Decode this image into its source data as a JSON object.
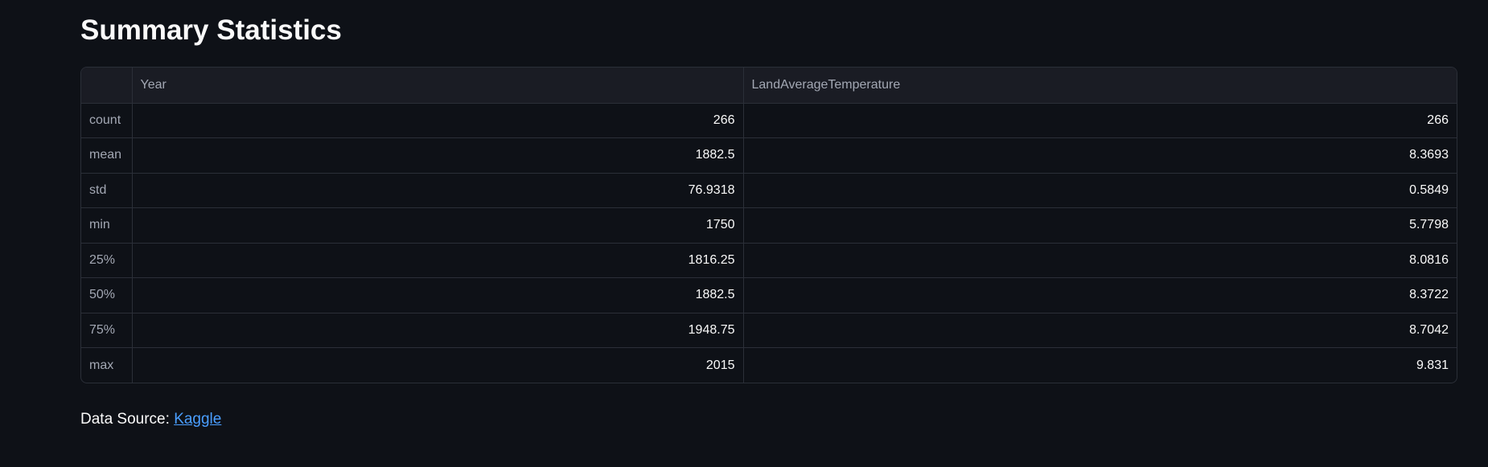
{
  "header": {
    "title": "Summary Statistics"
  },
  "table": {
    "columns": [
      "",
      "Year",
      "LandAverageTemperature"
    ],
    "rows": [
      {
        "label": "count",
        "year": "266",
        "temp": "266"
      },
      {
        "label": "mean",
        "year": "1882.5",
        "temp": "8.3693"
      },
      {
        "label": "std",
        "year": "76.9318",
        "temp": "0.5849"
      },
      {
        "label": "min",
        "year": "1750",
        "temp": "5.7798"
      },
      {
        "label": "25%",
        "year": "1816.25",
        "temp": "8.0816"
      },
      {
        "label": "50%",
        "year": "1882.5",
        "temp": "8.3722"
      },
      {
        "label": "75%",
        "year": "1948.75",
        "temp": "8.7042"
      },
      {
        "label": "max",
        "year": "2015",
        "temp": "9.831"
      }
    ]
  },
  "footer": {
    "source_label": "Data Source:",
    "source_link": "Kaggle"
  },
  "colors": {
    "background": "#0e1117",
    "header_bg": "#1a1c24",
    "border": "#2b2f38",
    "link": "#4a9eff"
  }
}
